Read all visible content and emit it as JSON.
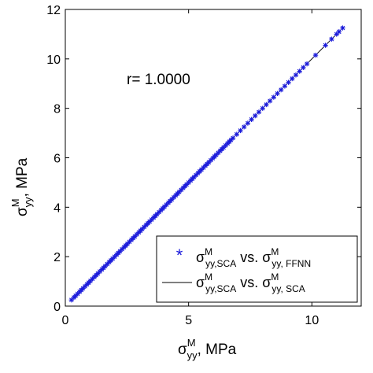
{
  "chart_data": {
    "type": "scatter",
    "xlabel": {
      "sym": "σ",
      "sup": "M",
      "sub": "yy",
      "tail": ", MPa"
    },
    "ylabel": {
      "sym": "σ",
      "sup": "M",
      "sub": "yy",
      "tail": ", MPa"
    },
    "xlim": [
      0,
      12
    ],
    "ylim": [
      0,
      12
    ],
    "xticks": [
      "0",
      "5",
      "10"
    ],
    "yticks": [
      "0",
      "2",
      "4",
      "6",
      "8",
      "10",
      "12"
    ],
    "annotation": "r= 1.0000",
    "legend": {
      "placement": "bottom-right",
      "entries": [
        {
          "marker": "*",
          "sym1": "σ",
          "sup1": "M",
          "sub1": "yy,SCA",
          "mid": " vs. ",
          "sym2": "σ",
          "sup2": "M",
          "sub2": "yy, FFNN"
        },
        {
          "marker": "line",
          "sym1": "σ",
          "sup1": "M",
          "sub1": "yy,SCA",
          "mid": " vs. ",
          "sym2": "σ",
          "sup2": "M",
          "sub2": "yy, SCA"
        }
      ]
    },
    "colors": {
      "points": "#1a1adb",
      "line": "#000000"
    },
    "line": {
      "x": [
        0.25,
        11.25
      ],
      "y": [
        0.25,
        11.25
      ]
    },
    "series": [
      {
        "name": "σM yy,SCA vs. σM yy, FFNN",
        "x": [
          0.25,
          0.35,
          0.42,
          0.5,
          0.58,
          0.65,
          0.72,
          0.8,
          0.88,
          0.95,
          1.02,
          1.1,
          1.18,
          1.25,
          1.32,
          1.4,
          1.48,
          1.55,
          1.62,
          1.7,
          1.78,
          1.85,
          1.92,
          2.0,
          2.08,
          2.15,
          2.22,
          2.3,
          2.38,
          2.45,
          2.52,
          2.6,
          2.68,
          2.75,
          2.82,
          2.9,
          2.98,
          3.05,
          3.12,
          3.2,
          3.28,
          3.35,
          3.42,
          3.5,
          3.58,
          3.65,
          3.72,
          3.8,
          3.88,
          3.95,
          4.02,
          4.1,
          4.18,
          4.25,
          4.32,
          4.4,
          4.48,
          4.55,
          4.62,
          4.7,
          4.78,
          4.85,
          4.92,
          5.0,
          5.08,
          5.15,
          5.22,
          5.3,
          5.38,
          5.45,
          5.52,
          5.6,
          5.68,
          5.75,
          5.82,
          5.9,
          5.98,
          6.05,
          6.12,
          6.2,
          6.28,
          6.35,
          6.42,
          6.5,
          6.58,
          6.65,
          6.72,
          6.8,
          6.95,
          7.1,
          7.25,
          7.4,
          7.55,
          7.7,
          7.85,
          8.0,
          8.15,
          8.3,
          8.45,
          8.6,
          8.75,
          8.9,
          9.05,
          9.2,
          9.35,
          9.5,
          9.65,
          9.8,
          10.15,
          10.55,
          10.8,
          11.0,
          11.1,
          11.25
        ],
        "y": [
          0.25,
          0.35,
          0.42,
          0.5,
          0.58,
          0.65,
          0.72,
          0.8,
          0.88,
          0.95,
          1.02,
          1.1,
          1.18,
          1.25,
          1.32,
          1.4,
          1.48,
          1.55,
          1.62,
          1.7,
          1.78,
          1.85,
          1.92,
          2.0,
          2.08,
          2.15,
          2.22,
          2.3,
          2.38,
          2.45,
          2.52,
          2.6,
          2.68,
          2.75,
          2.82,
          2.9,
          2.98,
          3.05,
          3.12,
          3.2,
          3.28,
          3.35,
          3.42,
          3.5,
          3.58,
          3.65,
          3.72,
          3.8,
          3.88,
          3.95,
          4.02,
          4.1,
          4.18,
          4.25,
          4.32,
          4.4,
          4.48,
          4.55,
          4.62,
          4.7,
          4.78,
          4.85,
          4.92,
          5.0,
          5.08,
          5.15,
          5.22,
          5.3,
          5.38,
          5.45,
          5.52,
          5.6,
          5.68,
          5.75,
          5.82,
          5.9,
          5.98,
          6.05,
          6.12,
          6.2,
          6.28,
          6.35,
          6.42,
          6.5,
          6.58,
          6.65,
          6.72,
          6.8,
          6.95,
          7.1,
          7.25,
          7.4,
          7.55,
          7.7,
          7.85,
          8.0,
          8.15,
          8.3,
          8.45,
          8.6,
          8.75,
          8.9,
          9.05,
          9.2,
          9.35,
          9.5,
          9.65,
          9.8,
          10.15,
          10.55,
          10.8,
          11.0,
          11.1,
          11.25
        ]
      }
    ]
  }
}
